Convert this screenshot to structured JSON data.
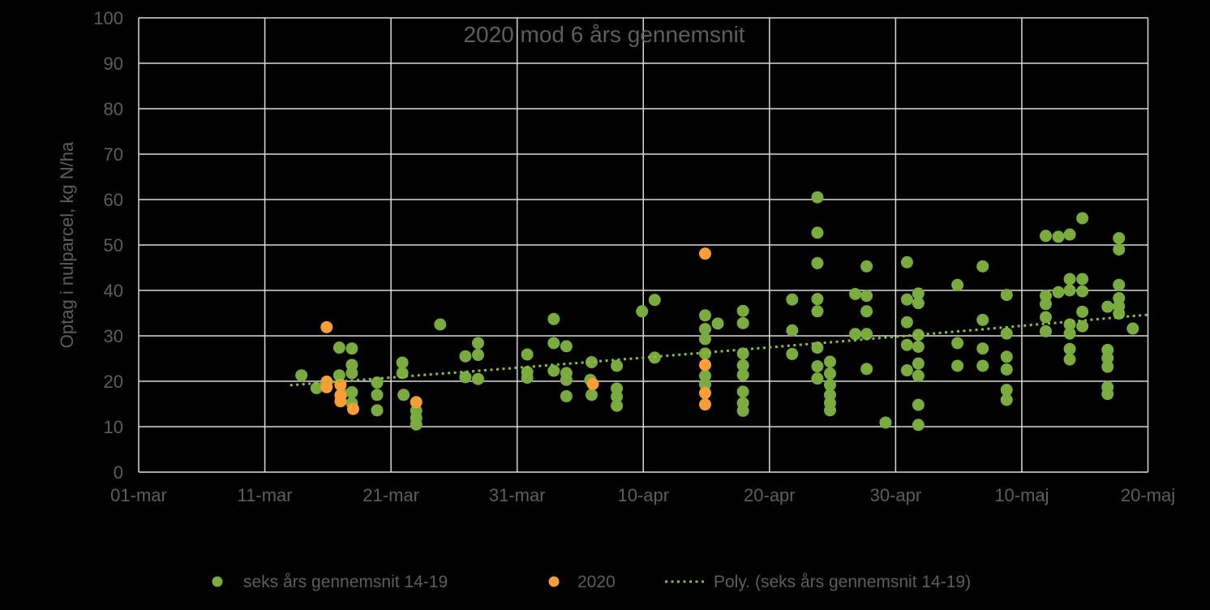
{
  "title": "2020 mod 6 års gennemsnit",
  "colors": {
    "background": "#000000",
    "text_gray": "#5E5E5E",
    "gridline": "#D9D9D9",
    "green": "#7AAB3F",
    "orange": "#F89E38",
    "trend": "#8CBC45"
  },
  "legend": [
    {
      "label": "seks års gennemsnit 14-19",
      "marker": "dot-green"
    },
    {
      "label": "2020",
      "marker": "dot-orange"
    },
    {
      "label": "Poly. (seks års gennemsnit 14-19)",
      "marker": "dotted-line-green"
    }
  ],
  "chart_data": {
    "type": "scatter",
    "title": "2020 mod 6 års gennemsnit",
    "xlabel": "",
    "ylabel": "Optag i nulparcel, kg N/ha",
    "x_axis": {
      "tick_labels": [
        "01-mar",
        "11-mar",
        "21-mar",
        "31-mar",
        "10-apr",
        "20-apr",
        "30-apr",
        "10-maj",
        "20-maj"
      ],
      "tick_days": [
        0,
        10,
        20,
        30,
        40,
        50,
        60,
        70,
        80
      ],
      "range_days": [
        0,
        80
      ]
    },
    "y_axis": {
      "min": 0,
      "max": 100,
      "step": 10
    },
    "grid": true,
    "legend_position": "bottom",
    "series": [
      {
        "name": "seks års gennemsnit 14-19",
        "color": "#7AAB3F",
        "points": [
          [
            12.9,
            21.3
          ],
          [
            14.1,
            18.5
          ],
          [
            15.9,
            27.4
          ],
          [
            15.9,
            21.3
          ],
          [
            16.1,
            17.3
          ],
          [
            16.9,
            27.2
          ],
          [
            16.9,
            23.6
          ],
          [
            16.9,
            21.8
          ],
          [
            16.9,
            17.6
          ],
          [
            16.9,
            15.2
          ],
          [
            18.9,
            19.7
          ],
          [
            18.9,
            17.0
          ],
          [
            18.9,
            13.6
          ],
          [
            20.9,
            24.1
          ],
          [
            20.9,
            21.8
          ],
          [
            21.0,
            17.0
          ],
          [
            22.0,
            13.5
          ],
          [
            22.0,
            11.9
          ],
          [
            22.0,
            10.5
          ],
          [
            23.9,
            32.5
          ],
          [
            25.9,
            25.5
          ],
          [
            25.9,
            20.9
          ],
          [
            26.9,
            28.4
          ],
          [
            26.9,
            25.8
          ],
          [
            26.9,
            20.5
          ],
          [
            30.8,
            25.9
          ],
          [
            30.8,
            22.0
          ],
          [
            30.8,
            20.8
          ],
          [
            32.9,
            33.7
          ],
          [
            32.9,
            28.4
          ],
          [
            32.9,
            22.3
          ],
          [
            33.9,
            27.7
          ],
          [
            33.9,
            21.8
          ],
          [
            33.9,
            20.3
          ],
          [
            33.9,
            16.7
          ],
          [
            35.9,
            24.2
          ],
          [
            35.8,
            20.3
          ],
          [
            35.9,
            17.0
          ],
          [
            37.9,
            23.4
          ],
          [
            37.9,
            18.4
          ],
          [
            37.9,
            16.6
          ],
          [
            37.9,
            14.6
          ],
          [
            39.9,
            35.4
          ],
          [
            40.9,
            37.9
          ],
          [
            40.9,
            25.2
          ],
          [
            44.9,
            34.5
          ],
          [
            44.9,
            31.5
          ],
          [
            44.9,
            29.3
          ],
          [
            44.9,
            26.1
          ],
          [
            44.9,
            21.2
          ],
          [
            44.9,
            19.3
          ],
          [
            45.9,
            32.7
          ],
          [
            47.9,
            35.5
          ],
          [
            47.9,
            32.8
          ],
          [
            47.9,
            26.1
          ],
          [
            47.9,
            23.5
          ],
          [
            47.9,
            21.4
          ],
          [
            47.9,
            17.7
          ],
          [
            47.9,
            15.2
          ],
          [
            47.9,
            13.5
          ],
          [
            51.8,
            38.0
          ],
          [
            51.8,
            31.2
          ],
          [
            51.8,
            26.0
          ],
          [
            53.8,
            60.5
          ],
          [
            53.8,
            52.7
          ],
          [
            53.8,
            46.0
          ],
          [
            53.8,
            38.1
          ],
          [
            53.8,
            35.4
          ],
          [
            53.8,
            27.4
          ],
          [
            53.8,
            23.3
          ],
          [
            53.8,
            20.6
          ],
          [
            54.8,
            24.3
          ],
          [
            54.8,
            21.7
          ],
          [
            54.8,
            19.2
          ],
          [
            54.8,
            17.0
          ],
          [
            54.8,
            15.2
          ],
          [
            54.8,
            13.6
          ],
          [
            56.8,
            39.2
          ],
          [
            56.8,
            30.4
          ],
          [
            57.7,
            45.3
          ],
          [
            57.7,
            38.8
          ],
          [
            57.7,
            35.4
          ],
          [
            57.7,
            30.4
          ],
          [
            57.7,
            22.7
          ],
          [
            59.2,
            10.9
          ],
          [
            60.9,
            46.2
          ],
          [
            60.9,
            38.0
          ],
          [
            60.9,
            33.0
          ],
          [
            60.9,
            28.0
          ],
          [
            60.9,
            22.4
          ],
          [
            61.8,
            39.3
          ],
          [
            61.8,
            37.2
          ],
          [
            61.8,
            30.2
          ],
          [
            61.8,
            27.6
          ],
          [
            61.8,
            23.9
          ],
          [
            61.8,
            21.2
          ],
          [
            61.8,
            14.8
          ],
          [
            61.8,
            10.4
          ],
          [
            64.9,
            41.2
          ],
          [
            64.9,
            28.4
          ],
          [
            64.9,
            23.4
          ],
          [
            66.9,
            45.3
          ],
          [
            66.9,
            33.5
          ],
          [
            66.9,
            27.2
          ],
          [
            66.9,
            23.4
          ],
          [
            68.8,
            39.0
          ],
          [
            68.8,
            30.5
          ],
          [
            68.8,
            25.4
          ],
          [
            68.8,
            22.6
          ],
          [
            68.8,
            18.1
          ],
          [
            68.8,
            15.9
          ],
          [
            71.9,
            52.0
          ],
          [
            71.9,
            38.8
          ],
          [
            71.9,
            37.0
          ],
          [
            71.9,
            34.1
          ],
          [
            71.9,
            31.0
          ],
          [
            72.9,
            51.8
          ],
          [
            72.9,
            39.6
          ],
          [
            73.8,
            52.3
          ],
          [
            73.8,
            42.5
          ],
          [
            73.8,
            40.0
          ],
          [
            73.8,
            32.5
          ],
          [
            73.8,
            30.5
          ],
          [
            73.8,
            27.1
          ],
          [
            73.8,
            24.8
          ],
          [
            74.8,
            55.9
          ],
          [
            74.8,
            42.5
          ],
          [
            74.8,
            39.8
          ],
          [
            74.8,
            35.3
          ],
          [
            74.8,
            32.1
          ],
          [
            76.8,
            36.4
          ],
          [
            76.8,
            26.9
          ],
          [
            76.8,
            25.1
          ],
          [
            76.8,
            23.2
          ],
          [
            76.8,
            18.7
          ],
          [
            76.8,
            17.2
          ],
          [
            77.7,
            51.5
          ],
          [
            77.7,
            49.0
          ],
          [
            77.7,
            41.2
          ],
          [
            77.7,
            38.3
          ],
          [
            77.7,
            36.5
          ],
          [
            77.7,
            34.9
          ],
          [
            78.8,
            31.6
          ]
        ]
      },
      {
        "name": "2020",
        "color": "#F89E38",
        "points": [
          [
            14.9,
            31.9
          ],
          [
            14.9,
            19.9
          ],
          [
            14.9,
            18.7
          ],
          [
            16.0,
            19.2
          ],
          [
            16.0,
            16.9
          ],
          [
            16.0,
            15.6
          ],
          [
            17.0,
            13.9
          ],
          [
            22.0,
            15.4
          ],
          [
            36.0,
            19.4
          ],
          [
            44.9,
            48.1
          ],
          [
            44.9,
            23.6
          ],
          [
            44.9,
            17.4
          ],
          [
            44.9,
            14.9
          ]
        ]
      }
    ],
    "trendline": {
      "name": "Poly. (seks års gennemsnit 14-19)",
      "color": "#8CBC45",
      "style": "dotted",
      "poly": {
        "base_day": 12.8,
        "c0": 19.3,
        "c1": 0.2086,
        "c2": 0.000295
      },
      "day_range": [
        12,
        80
      ]
    }
  }
}
